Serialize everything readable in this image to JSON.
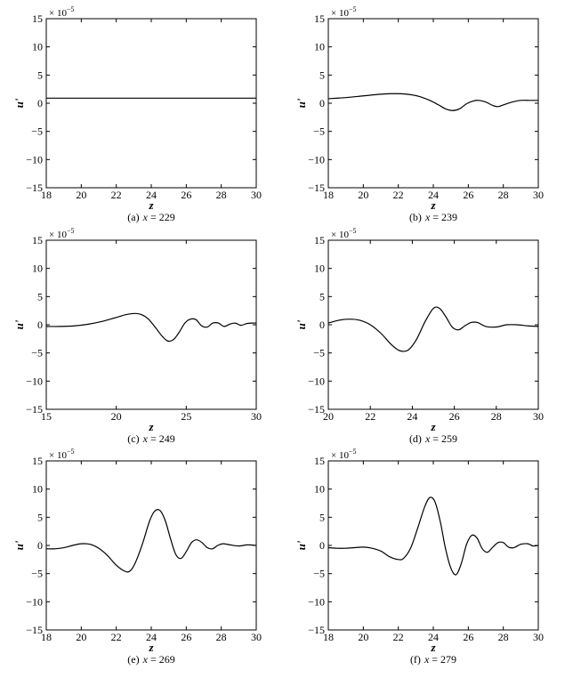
{
  "chart_data": [
    {
      "type": "line",
      "caption": "(a) x = 229",
      "caption_prefix": "(a)",
      "caption_var": "x",
      "caption_value": "229",
      "xlabel": "z",
      "ylabel": "u'",
      "scale_base": "× 10",
      "scale_exp": "−5",
      "xlim": [
        18,
        30
      ],
      "ylim": [
        -15,
        15
      ],
      "xticks": [
        18,
        20,
        22,
        24,
        26,
        28,
        30
      ],
      "yticks": [
        -15,
        -10,
        -5,
        0,
        5,
        10,
        15
      ],
      "series": [
        {
          "x": [
            18,
            30
          ],
          "y": [
            0.9,
            0.9
          ]
        }
      ]
    },
    {
      "type": "line",
      "caption": "(b) x = 239",
      "caption_prefix": "(b)",
      "caption_var": "x",
      "caption_value": "239",
      "xlabel": "z",
      "ylabel": "u'",
      "scale_base": "× 10",
      "scale_exp": "−5",
      "xlim": [
        18,
        30
      ],
      "ylim": [
        -15,
        15
      ],
      "xticks": [
        18,
        20,
        22,
        24,
        26,
        28,
        30
      ],
      "yticks": [
        -15,
        -10,
        -5,
        0,
        5,
        10,
        15
      ],
      "series": [
        {
          "x": [
            18,
            19,
            20,
            21,
            21.8,
            22.5,
            23.2,
            23.8,
            24.3,
            24.7,
            25.1,
            25.5,
            25.9,
            26.3,
            26.6,
            27,
            27.4,
            27.7,
            28,
            28.5,
            29,
            29.5,
            30
          ],
          "y": [
            0.8,
            1.0,
            1.3,
            1.6,
            1.7,
            1.6,
            1.2,
            0.5,
            -0.3,
            -1.0,
            -1.3,
            -1.0,
            -0.1,
            0.4,
            0.5,
            0.2,
            -0.4,
            -0.6,
            -0.3,
            0.2,
            0.5,
            0.5,
            0.5
          ]
        }
      ]
    },
    {
      "type": "line",
      "caption": "(c) x = 249",
      "caption_prefix": "(c)",
      "caption_var": "x",
      "caption_value": "249",
      "xlabel": "z",
      "ylabel": "u'",
      "scale_base": "× 10",
      "scale_exp": "−5",
      "xlim": [
        15,
        30
      ],
      "ylim": [
        -15,
        15
      ],
      "xticks": [
        15,
        20,
        25,
        30
      ],
      "yticks": [
        -15,
        -10,
        -5,
        0,
        5,
        10,
        15
      ],
      "series": [
        {
          "x": [
            15,
            16,
            17,
            18,
            19,
            20,
            20.7,
            21.3,
            21.8,
            22.3,
            22.8,
            23.3,
            23.7,
            24.1,
            24.5,
            24.9,
            25.3,
            25.7,
            26.1,
            26.5,
            26.9,
            27.3,
            27.7,
            28.1,
            28.5,
            28.9,
            29.3,
            29.7,
            30
          ],
          "y": [
            -0.3,
            -0.3,
            -0.2,
            0.1,
            0.6,
            1.3,
            1.8,
            2.0,
            1.8,
            1.0,
            -0.5,
            -2.1,
            -2.9,
            -2.6,
            -1.3,
            0.3,
            1.0,
            0.9,
            -0.2,
            -0.4,
            0.3,
            0.3,
            -0.3,
            0.1,
            0.3,
            -0.1,
            0.2,
            0.3,
            0.3
          ]
        }
      ]
    },
    {
      "type": "line",
      "caption": "(d) x = 259",
      "caption_prefix": "(d)",
      "caption_var": "x",
      "caption_value": "259",
      "xlabel": "z",
      "ylabel": "u'",
      "scale_base": "× 10",
      "scale_exp": "−5",
      "xlim": [
        20,
        30
      ],
      "ylim": [
        -15,
        15
      ],
      "xticks": [
        20,
        22,
        24,
        26,
        28,
        30
      ],
      "yticks": [
        -15,
        -10,
        -5,
        0,
        5,
        10,
        15
      ],
      "series": [
        {
          "x": [
            20,
            20.5,
            21,
            21.5,
            22,
            22.5,
            23,
            23.4,
            23.8,
            24.2,
            24.6,
            25,
            25.3,
            25.6,
            25.9,
            26.2,
            26.5,
            26.8,
            27.1,
            27.5,
            28,
            28.5,
            29,
            29.5,
            30
          ],
          "y": [
            0.3,
            0.8,
            1.0,
            0.8,
            0,
            -1.5,
            -3.5,
            -4.6,
            -4.5,
            -2.6,
            0.5,
            2.9,
            2.9,
            1.4,
            -0.4,
            -0.9,
            -0.2,
            0.4,
            0.4,
            -0.3,
            -0.4,
            0,
            0,
            -0.2,
            -0.3
          ]
        }
      ]
    },
    {
      "type": "line",
      "caption": "(e) x = 269",
      "caption_prefix": "(e)",
      "caption_var": "x",
      "caption_value": "269",
      "xlabel": "z",
      "ylabel": "u'",
      "scale_base": "× 10",
      "scale_exp": "−5",
      "xlim": [
        18,
        30
      ],
      "ylim": [
        -15,
        15
      ],
      "xticks": [
        18,
        20,
        22,
        24,
        26,
        28,
        30
      ],
      "yticks": [
        -15,
        -10,
        -5,
        0,
        5,
        10,
        15
      ],
      "series": [
        {
          "x": [
            18,
            18.5,
            19,
            19.5,
            20,
            20.5,
            21,
            21.5,
            22,
            22.5,
            22.8,
            23.1,
            23.5,
            23.9,
            24.2,
            24.5,
            24.8,
            25.1,
            25.4,
            25.7,
            26,
            26.3,
            26.6,
            26.9,
            27.2,
            27.5,
            27.8,
            28.1,
            28.5,
            29,
            29.5,
            30
          ],
          "y": [
            -0.6,
            -0.6,
            -0.4,
            0,
            0.3,
            0.2,
            -0.5,
            -1.8,
            -3.5,
            -4.6,
            -4.5,
            -3,
            0.3,
            4.3,
            6.1,
            6.2,
            4.4,
            1.2,
            -1.6,
            -2.3,
            -1.1,
            0.5,
            1.0,
            0.5,
            -0.4,
            -0.6,
            0,
            0.3,
            0.1,
            -0.1,
            0.1,
            0
          ]
        }
      ]
    },
    {
      "type": "line",
      "caption": "(f) x = 279",
      "caption_prefix": "(f)",
      "caption_var": "x",
      "caption_value": "279",
      "xlabel": "z",
      "ylabel": "u'",
      "scale_base": "× 10",
      "scale_exp": "−5",
      "xlim": [
        18,
        30
      ],
      "ylim": [
        -15,
        15
      ],
      "xticks": [
        18,
        20,
        22,
        24,
        26,
        28,
        30
      ],
      "yticks": [
        -15,
        -10,
        -5,
        0,
        5,
        10,
        15
      ],
      "series": [
        {
          "x": [
            18,
            18.5,
            19,
            19.5,
            20,
            20.5,
            21,
            21.5,
            22,
            22.3,
            22.7,
            23.1,
            23.5,
            23.8,
            24.1,
            24.4,
            24.7,
            25,
            25.3,
            25.6,
            25.9,
            26.2,
            26.5,
            26.8,
            27.1,
            27.4,
            27.7,
            28,
            28.3,
            28.6,
            29,
            29.4,
            29.7,
            30
          ],
          "y": [
            -0.4,
            -0.5,
            -0.5,
            -0.4,
            -0.3,
            -0.5,
            -1.0,
            -2.0,
            -2.5,
            -2.3,
            -0.5,
            3.0,
            6.8,
            8.5,
            7.7,
            4.2,
            -0.6,
            -4.0,
            -5.2,
            -3.2,
            0.2,
            1.8,
            1.3,
            -0.6,
            -1.2,
            -0.3,
            0.5,
            0.5,
            -0.3,
            -0.4,
            0.2,
            0.3,
            -0.1,
            0
          ]
        }
      ]
    }
  ]
}
